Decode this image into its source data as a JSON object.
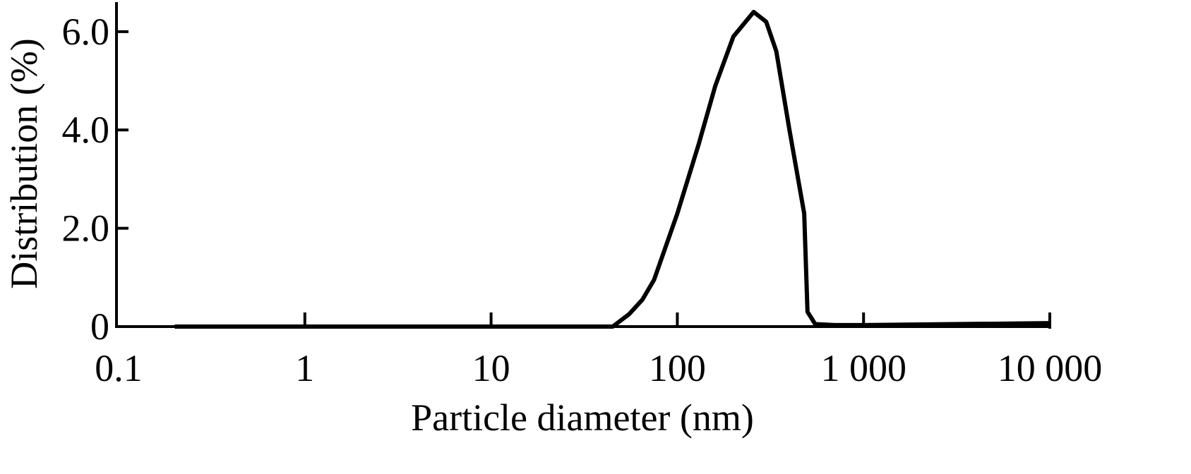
{
  "chart_data": {
    "type": "line",
    "x_label": "Particle diameter (nm)",
    "y_label": "Distribution (%)",
    "log_x": true,
    "x": [
      0.2,
      1,
      10,
      45,
      55,
      65,
      75,
      100,
      130,
      160,
      200,
      257,
      300,
      340,
      400,
      480,
      500,
      550,
      700,
      1000,
      10000
    ],
    "series": [
      {
        "color": "#000000",
        "values": [
          0,
          0,
          0,
          0,
          0.25,
          0.55,
          0.95,
          2.3,
          3.7,
          4.9,
          5.9,
          6.4,
          6.2,
          5.6,
          4.0,
          2.3,
          0.3,
          0.05,
          0.03,
          0.03,
          0.07
        ]
      }
    ],
    "xlim": [
      0.1,
      10000
    ],
    "xticks": [
      0.1,
      1,
      10,
      100,
      {
        "value": 1000,
        "label": "1 000"
      },
      {
        "value": 10000,
        "label": "10 000"
      }
    ],
    "ylim": [
      0,
      6.6
    ],
    "yticks": [
      0,
      {
        "value": 2,
        "label": "2.0"
      },
      {
        "value": 4,
        "label": "4.0"
      },
      {
        "value": 6,
        "label": "6.0"
      }
    ]
  }
}
